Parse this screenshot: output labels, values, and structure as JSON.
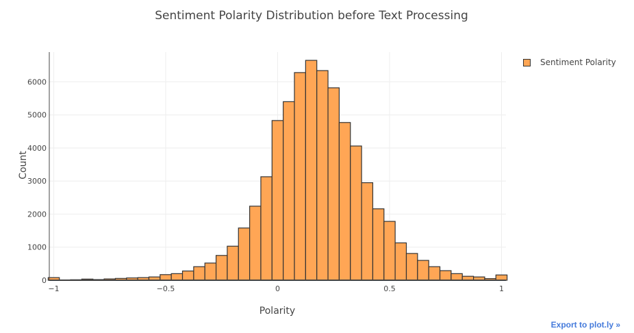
{
  "chart_data": {
    "type": "bar",
    "title": "Sentiment Polarity Distribution before Text Processing",
    "xlabel": "Polarity",
    "ylabel": "Count",
    "xlim": [
      -1.02,
      1.02
    ],
    "ylim": [
      0,
      6900
    ],
    "xticks": [
      -1,
      -0.5,
      0,
      0.5,
      1
    ],
    "xtick_labels": [
      "−1",
      "−0.5",
      "0",
      "0.5",
      "1"
    ],
    "yticks": [
      0,
      1000,
      2000,
      3000,
      4000,
      5000,
      6000
    ],
    "bin_width": 0.05,
    "series": [
      {
        "name": "Sentiment Polarity",
        "color": "#FFA655",
        "bins": [
          {
            "x0": -1.025,
            "value": 80
          },
          {
            "x0": -0.975,
            "value": 10
          },
          {
            "x0": -0.925,
            "value": 15
          },
          {
            "x0": -0.875,
            "value": 35
          },
          {
            "x0": -0.825,
            "value": 20
          },
          {
            "x0": -0.775,
            "value": 40
          },
          {
            "x0": -0.725,
            "value": 55
          },
          {
            "x0": -0.675,
            "value": 70
          },
          {
            "x0": -0.625,
            "value": 80
          },
          {
            "x0": -0.575,
            "value": 100
          },
          {
            "x0": -0.525,
            "value": 170
          },
          {
            "x0": -0.475,
            "value": 200
          },
          {
            "x0": -0.425,
            "value": 280
          },
          {
            "x0": -0.375,
            "value": 410
          },
          {
            "x0": -0.325,
            "value": 520
          },
          {
            "x0": -0.275,
            "value": 750
          },
          {
            "x0": -0.225,
            "value": 1030
          },
          {
            "x0": -0.175,
            "value": 1580
          },
          {
            "x0": -0.125,
            "value": 2240
          },
          {
            "x0": -0.075,
            "value": 3130
          },
          {
            "x0": -0.025,
            "value": 4830
          },
          {
            "x0": 0.025,
            "value": 5400
          },
          {
            "x0": 0.075,
            "value": 6280
          },
          {
            "x0": 0.125,
            "value": 6650
          },
          {
            "x0": 0.175,
            "value": 6340
          },
          {
            "x0": 0.225,
            "value": 5820
          },
          {
            "x0": 0.275,
            "value": 4770
          },
          {
            "x0": 0.325,
            "value": 4060
          },
          {
            "x0": 0.375,
            "value": 2950
          },
          {
            "x0": 0.425,
            "value": 2160
          },
          {
            "x0": 0.475,
            "value": 1780
          },
          {
            "x0": 0.525,
            "value": 1130
          },
          {
            "x0": 0.575,
            "value": 810
          },
          {
            "x0": 0.625,
            "value": 600
          },
          {
            "x0": 0.675,
            "value": 410
          },
          {
            "x0": 0.725,
            "value": 290
          },
          {
            "x0": 0.775,
            "value": 200
          },
          {
            "x0": 0.825,
            "value": 120
          },
          {
            "x0": 0.875,
            "value": 100
          },
          {
            "x0": 0.925,
            "value": 50
          },
          {
            "x0": 0.975,
            "value": 160
          }
        ]
      }
    ],
    "grid": true,
    "legend_position": "top-right"
  },
  "legend": {
    "label": "Sentiment Polarity"
  },
  "export": {
    "label": "Export to plot.ly »"
  }
}
